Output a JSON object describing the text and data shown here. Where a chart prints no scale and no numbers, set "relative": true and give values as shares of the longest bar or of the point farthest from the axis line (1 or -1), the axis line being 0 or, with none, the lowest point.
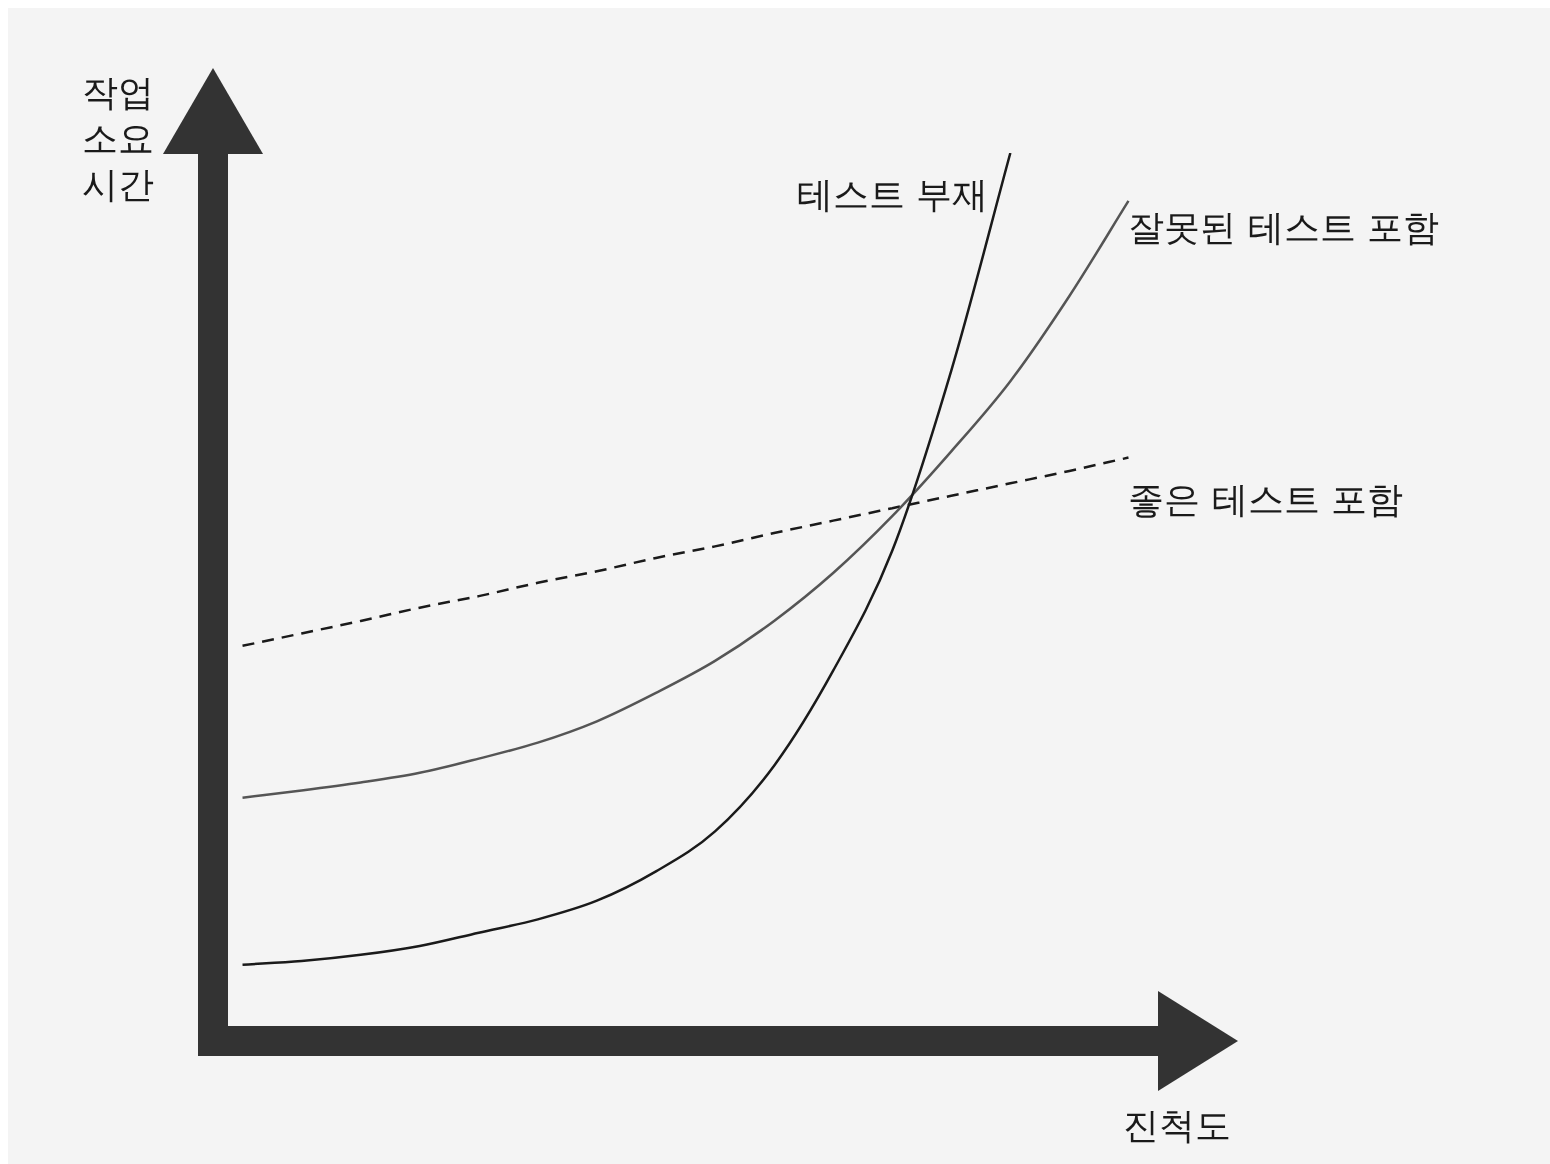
{
  "chart_data": {
    "type": "line",
    "relative": true,
    "xlabel": "진척도",
    "ylabel": "작업 소요 시간",
    "categories": [
      null,
      null,
      null,
      null,
      null,
      null,
      null,
      null,
      null,
      null,
      null,
      null,
      null,
      null,
      null,
      null
    ],
    "marker": "none",
    "grid": false,
    "series": [
      {
        "name": "테스트 부재",
        "color": "#1a1a1a",
        "values": [
          0.086,
          0.09,
          0.097,
          0.107,
          0.122,
          0.137,
          0.158,
          0.191,
          0.236,
          0.31,
          0.417,
          0.552,
          0.755,
          1,
          null,
          null
        ]
      },
      {
        "name": "잘못된 테스트 포함",
        "color": "#555555",
        "values": [
          0.274,
          0.282,
          0.291,
          0.302,
          0.318,
          0.336,
          0.36,
          0.392,
          0.428,
          0.473,
          0.527,
          0.591,
          0.664,
          0.743,
          0.839,
          0.946
        ]
      },
      {
        "name": "좋은 테스트 포함",
        "color": "#1a1a1a",
        "line_style": "dashed",
        "values": [
          0.445,
          0.459,
          0.473,
          0.488,
          0.501,
          0.516,
          0.529,
          0.544,
          0.557,
          0.572,
          0.586,
          0.6,
          0.614,
          0.628,
          0.642,
          0.657
        ]
      }
    ]
  }
}
